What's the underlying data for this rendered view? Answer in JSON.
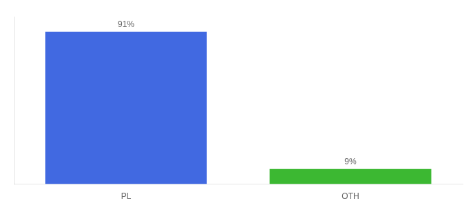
{
  "chart_data": {
    "type": "bar",
    "categories": [
      "PL",
      "OTH"
    ],
    "values": [
      91,
      9
    ],
    "value_labels": [
      "91%",
      "9%"
    ],
    "colors": [
      "#4169e1",
      "#3cb832"
    ],
    "ylim": [
      0,
      100
    ],
    "grid": false,
    "data_labels": true,
    "tick_labels": "x"
  }
}
